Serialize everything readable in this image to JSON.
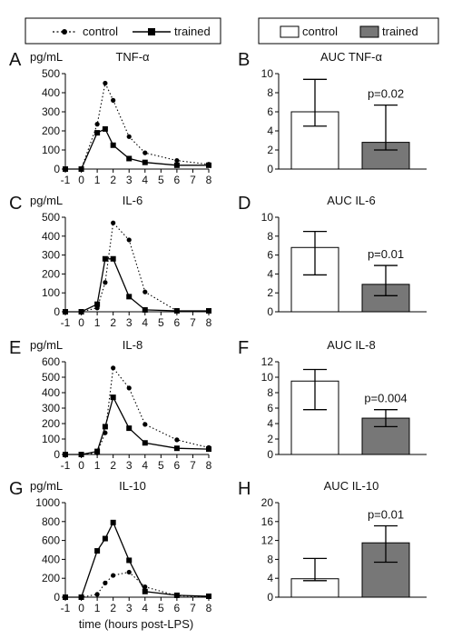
{
  "legend_left": {
    "control": "control",
    "trained": "trained"
  },
  "legend_right": {
    "control": "control",
    "trained": "trained"
  },
  "colors": {
    "control_bar": "#ffffff",
    "trained_bar": "#777777",
    "line": "#000000"
  },
  "xlabel": "time (hours post-LPS)",
  "chart_data": [
    {
      "panel": "A",
      "type": "line",
      "title": "TNF-α",
      "unit": "pg/mL",
      "x": [
        -1,
        0,
        1,
        1.5,
        2,
        3,
        4,
        6,
        8
      ],
      "xticks": [
        "-1",
        "0",
        "1",
        "2",
        "3",
        "4",
        "5",
        "6",
        "7",
        "8"
      ],
      "ylim": [
        0,
        500
      ],
      "yticks": [
        0,
        100,
        200,
        300,
        400,
        500
      ],
      "series": [
        {
          "name": "control",
          "values": [
            0,
            0,
            235,
            450,
            360,
            170,
            85,
            45,
            25
          ]
        },
        {
          "name": "trained",
          "values": [
            0,
            0,
            190,
            210,
            125,
            55,
            35,
            20,
            20
          ]
        }
      ]
    },
    {
      "panel": "B",
      "type": "bar",
      "title": "AUC TNF-α",
      "categories": [
        "control",
        "trained"
      ],
      "values": [
        6,
        2.8
      ],
      "err_low": [
        4.5,
        2
      ],
      "err_high": [
        9.4,
        6.7
      ],
      "ylim": [
        0,
        10
      ],
      "yticks": [
        0,
        2,
        4,
        6,
        8,
        10
      ],
      "pvalue": "p=0.02"
    },
    {
      "panel": "C",
      "type": "line",
      "title": "IL-6",
      "unit": "pg/mL",
      "x": [
        -1,
        0,
        1,
        1.5,
        2,
        3,
        4,
        6,
        8
      ],
      "xticks": [
        "-1",
        "0",
        "1",
        "2",
        "3",
        "4",
        "5",
        "6",
        "7",
        "8"
      ],
      "ylim": [
        0,
        500
      ],
      "yticks": [
        0,
        100,
        200,
        300,
        400,
        500
      ],
      "series": [
        {
          "name": "control",
          "values": [
            0,
            0,
            20,
            155,
            470,
            380,
            105,
            5,
            5
          ]
        },
        {
          "name": "trained",
          "values": [
            0,
            0,
            40,
            280,
            280,
            80,
            10,
            5,
            5
          ]
        }
      ]
    },
    {
      "panel": "D",
      "type": "bar",
      "title": "AUC IL-6",
      "categories": [
        "control",
        "trained"
      ],
      "values": [
        6.8,
        2.9
      ],
      "err_low": [
        3.9,
        1.7
      ],
      "err_high": [
        8.5,
        4.9
      ],
      "ylim": [
        0,
        10
      ],
      "yticks": [
        0,
        2,
        4,
        6,
        8,
        10
      ],
      "pvalue": "p=0.01"
    },
    {
      "panel": "E",
      "type": "line",
      "title": "IL-8",
      "unit": "pg/mL",
      "x": [
        -1,
        0,
        1,
        1.5,
        2,
        3,
        4,
        6,
        8
      ],
      "xticks": [
        "-1",
        "0",
        "1",
        "2",
        "3",
        "4",
        "5",
        "6",
        "7",
        "8"
      ],
      "ylim": [
        0,
        600
      ],
      "yticks": [
        0,
        100,
        200,
        300,
        400,
        500,
        600
      ],
      "series": [
        {
          "name": "control",
          "values": [
            0,
            0,
            10,
            140,
            560,
            430,
            195,
            95,
            45
          ]
        },
        {
          "name": "trained",
          "values": [
            0,
            0,
            20,
            180,
            370,
            170,
            75,
            40,
            35
          ]
        }
      ]
    },
    {
      "panel": "F",
      "type": "bar",
      "title": "AUC IL-8",
      "categories": [
        "control",
        "trained"
      ],
      "values": [
        9.5,
        4.7
      ],
      "err_low": [
        5.8,
        3.6
      ],
      "err_high": [
        11,
        5.8
      ],
      "ylim": [
        0,
        12
      ],
      "yticks": [
        0,
        2,
        4,
        6,
        8,
        10,
        12
      ],
      "pvalue": "p=0.004"
    },
    {
      "panel": "G",
      "type": "line",
      "title": "IL-10",
      "unit": "pg/mL",
      "x": [
        -1,
        0,
        1,
        1.5,
        2,
        3,
        4,
        6,
        8
      ],
      "xticks": [
        "-1",
        "0",
        "1",
        "2",
        "3",
        "4",
        "5",
        "6",
        "7",
        "8"
      ],
      "ylim": [
        0,
        1000
      ],
      "yticks": [
        0,
        200,
        400,
        600,
        800,
        1000
      ],
      "series": [
        {
          "name": "control",
          "values": [
            0,
            0,
            30,
            150,
            230,
            265,
            110,
            15,
            5
          ]
        },
        {
          "name": "trained",
          "values": [
            0,
            0,
            490,
            620,
            790,
            390,
            60,
            20,
            10
          ]
        }
      ]
    },
    {
      "panel": "H",
      "type": "bar",
      "title": "AUC IL-10",
      "categories": [
        "control",
        "trained"
      ],
      "values": [
        3.9,
        11.5
      ],
      "err_low": [
        3.5,
        7.4
      ],
      "err_high": [
        8.2,
        15.1
      ],
      "ylim": [
        0,
        20
      ],
      "yticks": [
        0,
        4,
        8,
        12,
        16,
        20
      ],
      "pvalue": "p=0.01"
    }
  ]
}
